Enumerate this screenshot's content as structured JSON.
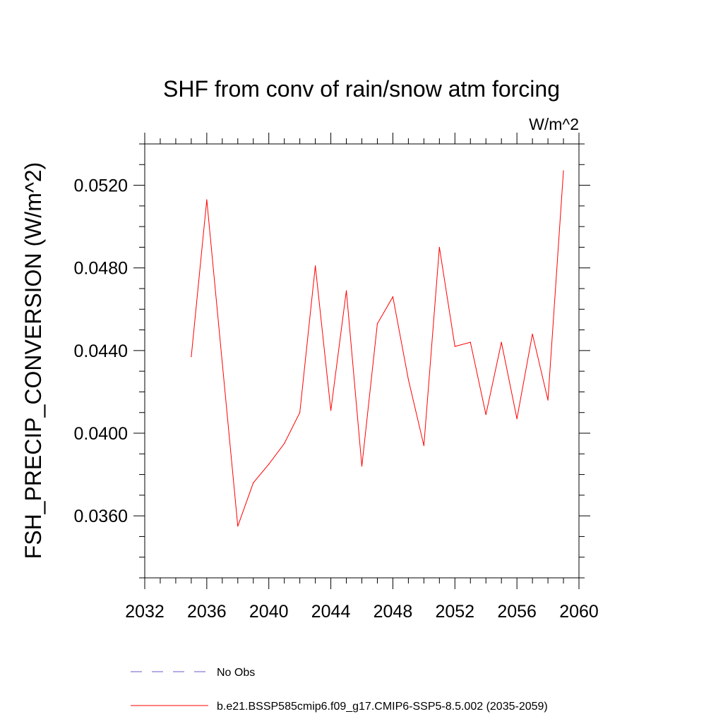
{
  "chart_data": {
    "type": "line",
    "title": "SHF from conv of rain/snow atm forcing",
    "units_label": "W/m^2",
    "ylabel": "FSH_PRECIP_CONVERSION  (W/m^2)",
    "xlabel": "",
    "xlim": [
      2032,
      2060
    ],
    "ylim": [
      0.033,
      0.054
    ],
    "x_ticks": [
      2032,
      2036,
      2040,
      2044,
      2048,
      2052,
      2056,
      2060
    ],
    "x_tick_labels": [
      "2032",
      "2036",
      "2040",
      "2044",
      "2048",
      "2052",
      "2056",
      "2060"
    ],
    "y_ticks": [
      0.036,
      0.04,
      0.044,
      0.048,
      0.052
    ],
    "y_tick_labels": [
      "0.0360",
      "0.0400",
      "0.0440",
      "0.0480",
      "0.0520"
    ],
    "grid": false,
    "series": [
      {
        "name": "b.e21.BSSP585cmip6.f09_g17.CMIP6-SSP5-8.5.002 (2035-2059)",
        "color": "#ff0000",
        "style": "solid",
        "x": [
          2035,
          2036,
          2037,
          2038,
          2039,
          2040,
          2041,
          2042,
          2043,
          2044,
          2045,
          2046,
          2047,
          2048,
          2049,
          2050,
          2051,
          2052,
          2053,
          2054,
          2055,
          2056,
          2057,
          2058,
          2059
        ],
        "values": [
          0.0437,
          0.0513,
          0.0434,
          0.0355,
          0.0376,
          0.0385,
          0.0395,
          0.041,
          0.0481,
          0.0411,
          0.0469,
          0.0384,
          0.0453,
          0.0466,
          0.0426,
          0.0394,
          0.049,
          0.0442,
          0.0444,
          0.0409,
          0.0444,
          0.0407,
          0.0448,
          0.0416,
          0.0527
        ]
      }
    ],
    "legend": {
      "placement": "bottom",
      "entries": [
        {
          "label": "No Obs",
          "color": "#6a5acd",
          "style": "dashed"
        },
        {
          "label": "b.e21.BSSP585cmip6.f09_g17.CMIP6-SSP5-8.5.002 (2035-2059)",
          "color": "#ff0000",
          "style": "solid"
        }
      ]
    }
  }
}
